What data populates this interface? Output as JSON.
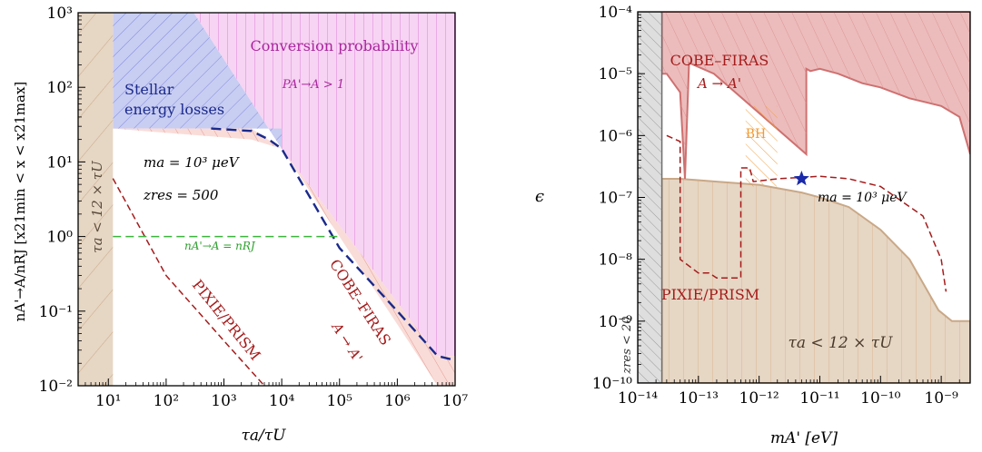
{
  "chart_data": [
    {
      "type": "area",
      "xlabel": "τa/τU",
      "ylabel": "nA'→A/nRJ  [x21min < x < x21max]",
      "xscale": "log",
      "yscale": "log",
      "xlim": [
        3,
        10000000
      ],
      "ylim": [
        0.01,
        1000
      ],
      "x_ticks": [
        {
          "value": 10,
          "label": "10¹"
        },
        {
          "value": 100,
          "label": "10²"
        },
        {
          "value": 1000,
          "label": "10³"
        },
        {
          "value": 10000,
          "label": "10⁴"
        },
        {
          "value": 100000,
          "label": "10⁵"
        },
        {
          "value": 1000000,
          "label": "10⁶"
        },
        {
          "value": 10000000,
          "label": "10⁷"
        }
      ],
      "y_ticks": [
        {
          "value": 0.01,
          "label": "10⁻²"
        },
        {
          "value": 0.1,
          "label": "10⁻¹"
        },
        {
          "value": 1,
          "label": "10⁰"
        },
        {
          "value": 10,
          "label": "10¹"
        },
        {
          "value": 100,
          "label": "10²"
        },
        {
          "value": 1000,
          "label": "10³"
        }
      ],
      "regions": {
        "tau_limit": {
          "x_max": 12,
          "color": "#e6d6c4",
          "label": "τa < 12 × τU"
        },
        "stellar": {
          "color": "#c8cdf2",
          "label1": "Stellar",
          "label2": "energy losses",
          "points": [
            [
              12,
              1000
            ],
            [
              300,
              1000
            ],
            [
              10000,
              15
            ],
            [
              10000,
              28
            ],
            [
              12,
              28
            ]
          ]
        },
        "conversion": {
          "color": "#f7d4f3",
          "label1": "Conversion probability",
          "label2": "PA'→A > 1",
          "points": [
            [
              300,
              1000
            ],
            [
              10000000,
              1000
            ],
            [
              10000000,
              0.025
            ],
            [
              5000000,
              0.025
            ],
            [
              10000,
              15
            ]
          ]
        },
        "cobe": {
          "color": "#f9dcd8",
          "points": [
            [
              12,
              28
            ],
            [
              3000,
              28
            ],
            [
              10000,
              15
            ],
            [
              5000000,
              0.025
            ],
            [
              10000000,
              0.025
            ],
            [
              10000000,
              0.01
            ],
            [
              5000000,
              0.01
            ],
            [
              10000,
              15
            ],
            [
              3000,
              20
            ]
          ]
        }
      },
      "series": [
        {
          "name": "COBE–FIRAS",
          "style": "dashed",
          "color": "#1a2a8c",
          "points": [
            [
              600,
              28
            ],
            [
              3000,
              26
            ],
            [
              6000,
              20
            ],
            [
              10000,
              15
            ],
            [
              100000,
              0.7
            ],
            [
              1000000,
              0.1
            ],
            [
              5000000,
              0.025
            ],
            [
              10000000,
              0.022
            ]
          ]
        },
        {
          "name": "PIXIE/PRISM",
          "style": "dashed",
          "color": "#a51c1c",
          "points": [
            [
              12,
              6
            ],
            [
              100,
              0.3
            ],
            [
              1000,
              0.04
            ],
            [
              5000,
              0.01
            ]
          ]
        },
        {
          "name": "nA'→A = nRJ",
          "style": "dashed",
          "color": "#3cb43c",
          "points": [
            [
              12,
              1
            ],
            [
              100000,
              1
            ]
          ]
        }
      ],
      "annotations": {
        "ma_label": "ma = 10³ μeV",
        "zres_label": "zres = 500",
        "nrj_label": "nA'→A = nRJ",
        "pixie_label": "PIXIE/PRISM",
        "cobe_label": "COBE–FIRAS",
        "cobe_sub": "A → A'"
      }
    },
    {
      "type": "area",
      "xlabel": "mA'  [eV]",
      "ylabel": "ϵ",
      "xscale": "log",
      "yscale": "log",
      "xlim": [
        1e-14,
        3e-09
      ],
      "ylim": [
        1e-10,
        0.0001
      ],
      "x_ticks": [
        {
          "value": 1e-14,
          "label": "10⁻¹⁴"
        },
        {
          "value": 1e-13,
          "label": "10⁻¹³"
        },
        {
          "value": 1e-12,
          "label": "10⁻¹²"
        },
        {
          "value": 1e-11,
          "label": "10⁻¹¹"
        },
        {
          "value": 1e-10,
          "label": "10⁻¹⁰"
        },
        {
          "value": 1e-09,
          "label": "10⁻⁹"
        }
      ],
      "y_ticks": [
        {
          "value": 1e-10,
          "label": "10⁻¹⁰"
        },
        {
          "value": 1e-09,
          "label": "10⁻⁹"
        },
        {
          "value": 1e-08,
          "label": "10⁻⁸"
        },
        {
          "value": 1e-07,
          "label": "10⁻⁷"
        },
        {
          "value": 1e-06,
          "label": "10⁻⁶"
        },
        {
          "value": 1e-05,
          "label": "10⁻⁵"
        },
        {
          "value": 0.0001,
          "label": "10⁻⁴"
        }
      ],
      "regions": {
        "zres": {
          "color": "#dedede",
          "label": "zres < 20",
          "points": [
            [
              1e-14,
              1e-10
            ],
            [
              2.5e-14,
              1e-10
            ],
            [
              2.5e-14,
              0.0001
            ],
            [
              1e-14,
              0.0001
            ]
          ]
        },
        "tau_limit": {
          "color": "#e6d6c4",
          "label": "τa < 12 × τU",
          "points": [
            [
              2.5e-14,
              1e-10
            ],
            [
              3e-09,
              1e-10
            ],
            [
              3e-09,
              1e-09
            ],
            [
              1.5e-09,
              1e-09
            ],
            [
              9e-10,
              1.5e-09
            ],
            [
              3e-10,
              1e-08
            ],
            [
              1e-10,
              3e-08
            ],
            [
              3e-11,
              7e-08
            ],
            [
              1e-11,
              1e-07
            ],
            [
              5e-12,
              1.2e-07
            ],
            [
              1e-12,
              1.6e-07
            ],
            [
              2e-13,
              1.8e-07
            ],
            [
              5e-14,
              2e-07
            ],
            [
              2.5e-14,
              2e-07
            ]
          ]
        },
        "cobe": {
          "color": "#ecbcbc",
          "label1": "COBE–FIRAS",
          "label2": "A → A'",
          "points": [
            [
              2.5e-14,
              0.0001
            ],
            [
              3e-09,
              0.0001
            ],
            [
              3e-09,
              5e-07
            ],
            [
              2e-09,
              2e-06
            ],
            [
              1e-09,
              3e-06
            ],
            [
              3e-10,
              4e-06
            ],
            [
              1e-10,
              6e-06
            ],
            [
              5e-11,
              7e-06
            ],
            [
              2e-11,
              1e-05
            ],
            [
              1e-11,
              1.2e-05
            ],
            [
              7e-12,
              1.1e-05
            ],
            [
              6e-12,
              1.2e-05
            ],
            [
              6e-12,
              5e-07
            ],
            [
              1.8e-13,
              1e-05
            ],
            [
              7e-14,
              1.5e-05
            ],
            [
              6e-14,
              2e-07
            ],
            [
              5e-14,
              5e-06
            ],
            [
              3e-14,
              1e-05
            ],
            [
              2.5e-14,
              1e-05
            ]
          ]
        },
        "bh": {
          "color": "#f6a94c",
          "label": "BH",
          "points": [
            [
              6e-13,
              3e-06
            ],
            [
              2e-12,
              3e-06
            ],
            [
              2e-12,
              1.5e-07
            ],
            [
              6e-13,
              1.5e-07
            ]
          ]
        }
      },
      "series": [
        {
          "name": "PIXIE/PRISM",
          "style": "dashed",
          "color": "#a51c1c",
          "points": [
            [
              3e-14,
              1e-06
            ],
            [
              5e-14,
              8e-07
            ],
            [
              5e-14,
              1e-08
            ],
            [
              1e-13,
              6e-09
            ],
            [
              1.5e-13,
              6e-09
            ],
            [
              2e-13,
              5e-09
            ],
            [
              5e-13,
              5e-09
            ],
            [
              5e-13,
              3e-07
            ],
            [
              7e-13,
              3e-07
            ],
            [
              8e-13,
              1.8e-07
            ],
            [
              2e-12,
              2e-07
            ],
            [
              1e-11,
              2.2e-07
            ],
            [
              3e-11,
              2e-07
            ],
            [
              1e-10,
              1.5e-07
            ],
            [
              5e-10,
              5e-08
            ],
            [
              1e-09,
              1e-08
            ],
            [
              1.2e-09,
              3e-09
            ]
          ]
        }
      ],
      "star": {
        "x": 5e-12,
        "y": 2e-07,
        "color": "#1a2aa8"
      },
      "annotations": {
        "ma_label": "ma = 10³ μeV",
        "pixie_label": "PIXIE/PRISM",
        "tau_label": "τa < 12 × τU",
        "zres_label": "zres < 20",
        "bh_label": "BH"
      }
    }
  ]
}
